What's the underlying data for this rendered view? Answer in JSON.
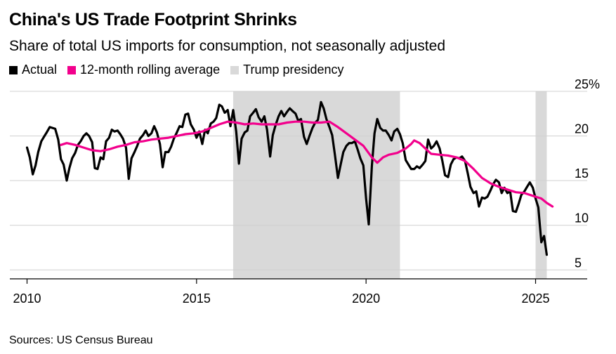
{
  "colors": {
    "actual": "#000000",
    "average": "#f2008c",
    "presidency": "#d9d9d9"
  },
  "chart_data": {
    "type": "line",
    "title": "China's US Trade Footprint Shrinks",
    "subtitle": "Share of total US imports for consumption, not seasonally adjusted",
    "legend": [
      {
        "label": "Actual",
        "color": "#000000"
      },
      {
        "label": "12-month rolling average",
        "color": "#f2008c"
      },
      {
        "label": "Trump presidency",
        "color": "#d9d9d9"
      }
    ],
    "xlim": [
      2009.6,
      2026.2
    ],
    "ylim": [
      4,
      25
    ],
    "x_ticks": [
      "2010",
      "2015",
      "2020",
      "2025"
    ],
    "y_ticks": [
      "25%",
      "20",
      "15",
      "10",
      "5"
    ],
    "y_tick_values": [
      25,
      20,
      15,
      10,
      5
    ],
    "legend_placement": "top-left",
    "shaded_ranges": [
      [
        2016.08,
        2021.0
      ],
      [
        2025.0,
        2025.33
      ]
    ],
    "series": [
      {
        "name": "Actual",
        "points": [
          [
            2010.0,
            18.7
          ],
          [
            2010.08,
            17.6
          ],
          [
            2010.17,
            15.7
          ],
          [
            2010.25,
            16.7
          ],
          [
            2010.33,
            18.2
          ],
          [
            2010.42,
            19.4
          ],
          [
            2010.5,
            19.9
          ],
          [
            2010.58,
            20.4
          ],
          [
            2010.67,
            21.0
          ],
          [
            2010.75,
            20.9
          ],
          [
            2010.83,
            20.8
          ],
          [
            2010.92,
            19.6
          ],
          [
            2011.0,
            17.4
          ],
          [
            2011.08,
            16.8
          ],
          [
            2011.17,
            15.0
          ],
          [
            2011.25,
            16.4
          ],
          [
            2011.33,
            17.5
          ],
          [
            2011.42,
            18.1
          ],
          [
            2011.5,
            19.0
          ],
          [
            2011.58,
            19.4
          ],
          [
            2011.67,
            20.0
          ],
          [
            2011.75,
            20.3
          ],
          [
            2011.83,
            20.0
          ],
          [
            2011.92,
            19.3
          ],
          [
            2012.0,
            16.4
          ],
          [
            2012.08,
            16.3
          ],
          [
            2012.17,
            17.6
          ],
          [
            2012.25,
            17.4
          ],
          [
            2012.33,
            19.4
          ],
          [
            2012.42,
            19.8
          ],
          [
            2012.5,
            20.7
          ],
          [
            2012.58,
            20.5
          ],
          [
            2012.67,
            20.6
          ],
          [
            2012.75,
            20.2
          ],
          [
            2012.83,
            19.7
          ],
          [
            2012.92,
            18.7
          ],
          [
            2013.0,
            15.2
          ],
          [
            2013.08,
            17.5
          ],
          [
            2013.17,
            18.2
          ],
          [
            2013.25,
            18.9
          ],
          [
            2013.33,
            19.7
          ],
          [
            2013.42,
            20.1
          ],
          [
            2013.5,
            20.6
          ],
          [
            2013.58,
            20.0
          ],
          [
            2013.67,
            20.3
          ],
          [
            2013.75,
            21.1
          ],
          [
            2013.83,
            20.4
          ],
          [
            2013.92,
            19.1
          ],
          [
            2014.0,
            16.5
          ],
          [
            2014.08,
            18.2
          ],
          [
            2014.17,
            18.2
          ],
          [
            2014.25,
            18.8
          ],
          [
            2014.33,
            19.7
          ],
          [
            2014.42,
            20.4
          ],
          [
            2014.5,
            21.1
          ],
          [
            2014.58,
            21.0
          ],
          [
            2014.67,
            22.4
          ],
          [
            2014.75,
            22.5
          ],
          [
            2014.83,
            21.3
          ],
          [
            2014.92,
            20.7
          ],
          [
            2015.0,
            19.8
          ],
          [
            2015.08,
            20.5
          ],
          [
            2015.17,
            19.1
          ],
          [
            2015.25,
            20.7
          ],
          [
            2015.33,
            20.3
          ],
          [
            2015.42,
            21.4
          ],
          [
            2015.5,
            21.6
          ],
          [
            2015.58,
            22.0
          ],
          [
            2015.67,
            23.5
          ],
          [
            2015.75,
            23.3
          ],
          [
            2015.83,
            22.6
          ],
          [
            2015.92,
            22.9
          ],
          [
            2016.0,
            21.1
          ],
          [
            2016.08,
            22.9
          ],
          [
            2016.17,
            20.5
          ],
          [
            2016.25,
            16.9
          ],
          [
            2016.33,
            19.7
          ],
          [
            2016.42,
            20.4
          ],
          [
            2016.5,
            20.6
          ],
          [
            2016.58,
            22.2
          ],
          [
            2016.67,
            22.6
          ],
          [
            2016.75,
            23.0
          ],
          [
            2016.83,
            22.1
          ],
          [
            2016.92,
            21.6
          ],
          [
            2017.0,
            22.2
          ],
          [
            2017.08,
            20.7
          ],
          [
            2017.17,
            17.7
          ],
          [
            2017.25,
            20.1
          ],
          [
            2017.33,
            21.2
          ],
          [
            2017.42,
            22.2
          ],
          [
            2017.5,
            22.8
          ],
          [
            2017.58,
            22.2
          ],
          [
            2017.67,
            22.7
          ],
          [
            2017.75,
            23.1
          ],
          [
            2017.83,
            22.8
          ],
          [
            2017.92,
            22.5
          ],
          [
            2018.0,
            21.7
          ],
          [
            2018.08,
            21.9
          ],
          [
            2018.17,
            19.9
          ],
          [
            2018.25,
            19.1
          ],
          [
            2018.33,
            20.0
          ],
          [
            2018.42,
            20.9
          ],
          [
            2018.5,
            21.5
          ],
          [
            2018.58,
            21.8
          ],
          [
            2018.67,
            23.8
          ],
          [
            2018.75,
            23.1
          ],
          [
            2018.83,
            21.9
          ],
          [
            2018.92,
            21.0
          ],
          [
            2019.0,
            20.1
          ],
          [
            2019.08,
            17.9
          ],
          [
            2019.17,
            15.3
          ],
          [
            2019.25,
            16.8
          ],
          [
            2019.33,
            18.2
          ],
          [
            2019.42,
            18.9
          ],
          [
            2019.5,
            19.2
          ],
          [
            2019.58,
            19.2
          ],
          [
            2019.67,
            19.4
          ],
          [
            2019.75,
            18.5
          ],
          [
            2019.83,
            17.5
          ],
          [
            2019.92,
            16.7
          ],
          [
            2020.0,
            13.0
          ],
          [
            2020.08,
            10.1
          ],
          [
            2020.17,
            16.6
          ],
          [
            2020.25,
            20.3
          ],
          [
            2020.33,
            21.9
          ],
          [
            2020.42,
            20.9
          ],
          [
            2020.5,
            20.6
          ],
          [
            2020.58,
            20.6
          ],
          [
            2020.67,
            20.1
          ],
          [
            2020.75,
            19.5
          ],
          [
            2020.83,
            20.5
          ],
          [
            2020.92,
            20.8
          ],
          [
            2021.0,
            20.2
          ],
          [
            2021.08,
            19.2
          ],
          [
            2021.17,
            17.3
          ],
          [
            2021.25,
            16.8
          ],
          [
            2021.33,
            16.3
          ],
          [
            2021.42,
            16.3
          ],
          [
            2021.5,
            16.6
          ],
          [
            2021.58,
            16.4
          ],
          [
            2021.67,
            16.8
          ],
          [
            2021.75,
            17.2
          ],
          [
            2021.83,
            19.6
          ],
          [
            2021.92,
            18.6
          ],
          [
            2022.0,
            18.9
          ],
          [
            2022.08,
            19.4
          ],
          [
            2022.17,
            18.6
          ],
          [
            2022.25,
            17.2
          ],
          [
            2022.33,
            15.6
          ],
          [
            2022.42,
            15.4
          ],
          [
            2022.5,
            16.8
          ],
          [
            2022.58,
            17.4
          ],
          [
            2022.67,
            17.6
          ],
          [
            2022.75,
            17.5
          ],
          [
            2022.83,
            17.7
          ],
          [
            2022.92,
            17.2
          ],
          [
            2023.0,
            15.8
          ],
          [
            2023.08,
            14.3
          ],
          [
            2023.17,
            13.6
          ],
          [
            2023.25,
            13.8
          ],
          [
            2023.33,
            12.1
          ],
          [
            2023.42,
            13.1
          ],
          [
            2023.5,
            13.0
          ],
          [
            2023.58,
            13.2
          ],
          [
            2023.67,
            13.9
          ],
          [
            2023.75,
            14.6
          ],
          [
            2023.83,
            15.1
          ],
          [
            2023.92,
            14.8
          ],
          [
            2024.0,
            13.6
          ],
          [
            2024.08,
            14.2
          ],
          [
            2024.17,
            13.6
          ],
          [
            2024.25,
            13.8
          ],
          [
            2024.33,
            11.6
          ],
          [
            2024.42,
            11.5
          ],
          [
            2024.5,
            12.4
          ],
          [
            2024.58,
            13.4
          ],
          [
            2024.67,
            13.8
          ],
          [
            2024.75,
            14.3
          ],
          [
            2024.83,
            14.8
          ],
          [
            2024.92,
            14.2
          ],
          [
            2025.0,
            13.0
          ],
          [
            2025.08,
            12.0
          ],
          [
            2025.17,
            8.1
          ],
          [
            2025.25,
            8.8
          ],
          [
            2025.33,
            6.7
          ]
        ]
      },
      {
        "name": "12-month rolling average",
        "points": [
          [
            2011.0,
            19.0
          ],
          [
            2011.17,
            19.2
          ],
          [
            2011.42,
            19.0
          ],
          [
            2011.67,
            18.7
          ],
          [
            2011.92,
            18.4
          ],
          [
            2012.17,
            18.3
          ],
          [
            2012.42,
            18.5
          ],
          [
            2012.67,
            18.8
          ],
          [
            2012.92,
            19.0
          ],
          [
            2013.17,
            19.3
          ],
          [
            2013.42,
            19.4
          ],
          [
            2013.67,
            19.6
          ],
          [
            2013.92,
            19.7
          ],
          [
            2014.17,
            19.8
          ],
          [
            2014.42,
            20.0
          ],
          [
            2014.67,
            20.2
          ],
          [
            2014.92,
            20.3
          ],
          [
            2015.17,
            20.5
          ],
          [
            2015.42,
            20.9
          ],
          [
            2015.67,
            21.3
          ],
          [
            2015.92,
            21.6
          ],
          [
            2016.17,
            21.5
          ],
          [
            2016.42,
            21.3
          ],
          [
            2016.67,
            21.4
          ],
          [
            2016.92,
            21.3
          ],
          [
            2017.17,
            21.3
          ],
          [
            2017.42,
            21.3
          ],
          [
            2017.67,
            21.5
          ],
          [
            2017.92,
            21.6
          ],
          [
            2018.17,
            21.6
          ],
          [
            2018.42,
            21.5
          ],
          [
            2018.67,
            21.5
          ],
          [
            2018.92,
            21.6
          ],
          [
            2019.17,
            21.0
          ],
          [
            2019.42,
            20.3
          ],
          [
            2019.67,
            19.6
          ],
          [
            2019.92,
            18.9
          ],
          [
            2020.17,
            17.6
          ],
          [
            2020.33,
            17.0
          ],
          [
            2020.5,
            17.6
          ],
          [
            2020.67,
            17.9
          ],
          [
            2020.92,
            18.1
          ],
          [
            2021.17,
            18.6
          ],
          [
            2021.33,
            19.1
          ],
          [
            2021.42,
            19.5
          ],
          [
            2021.58,
            19.2
          ],
          [
            2021.75,
            18.6
          ],
          [
            2021.92,
            18.0
          ],
          [
            2022.17,
            17.9
          ],
          [
            2022.42,
            17.8
          ],
          [
            2022.67,
            17.6
          ],
          [
            2022.92,
            17.2
          ],
          [
            2023.17,
            16.3
          ],
          [
            2023.42,
            15.3
          ],
          [
            2023.67,
            14.7
          ],
          [
            2023.92,
            14.3
          ],
          [
            2024.17,
            14.0
          ],
          [
            2024.42,
            13.7
          ],
          [
            2024.67,
            13.6
          ],
          [
            2024.92,
            13.3
          ],
          [
            2025.17,
            13.0
          ],
          [
            2025.33,
            12.5
          ],
          [
            2025.5,
            12.1
          ]
        ]
      }
    ]
  },
  "source": "Sources: US Census Bureau"
}
